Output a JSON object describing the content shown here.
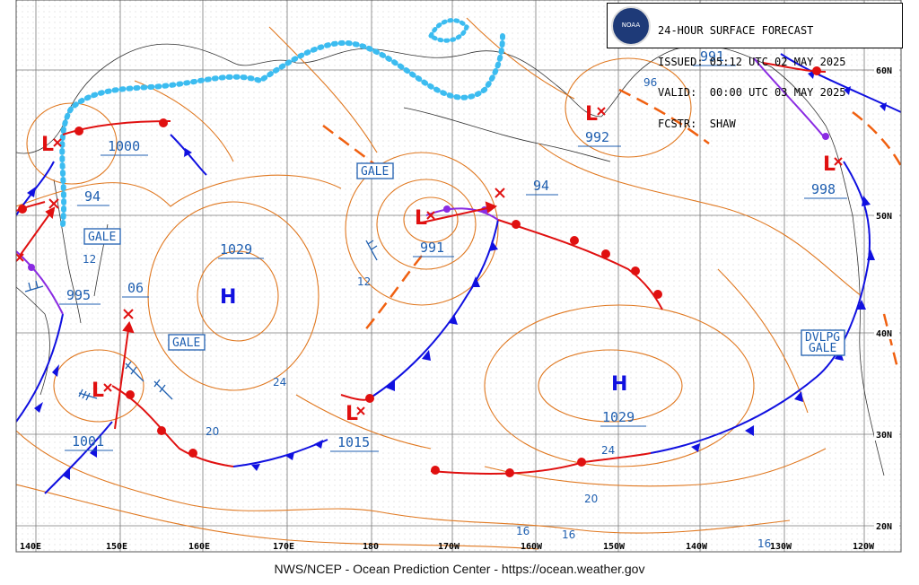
{
  "header": {
    "agency_logo_text": "NOAA",
    "title": "24-HOUR SURFACE FORECAST",
    "issued": "ISSUED: 05:12 UTC 02 MAY 2025",
    "valid": "VALID:  00:00 UTC 03 MAY 2025",
    "forecaster": "FCSTR:  SHAW"
  },
  "footer": "NWS/NCEP - Ocean Prediction Center - https://ocean.weather.gov",
  "latitude_labels": [
    "60N",
    "50N",
    "40N",
    "30N",
    "20N"
  ],
  "longitude_labels": [
    "140E",
    "150E",
    "160E",
    "170E",
    "180",
    "170W",
    "160W",
    "150W",
    "140W",
    "130W",
    "120W"
  ],
  "highs": [
    {
      "symbol": "H",
      "pressure": "1029"
    },
    {
      "symbol": "H",
      "pressure": "1029"
    }
  ],
  "lows": [
    {
      "pressure": "1000"
    },
    {
      "pressure": "94"
    },
    {
      "pressure": "995"
    },
    {
      "pressure": "06"
    },
    {
      "pressure": "1001"
    },
    {
      "pressure": "991"
    },
    {
      "pressure": "94"
    },
    {
      "pressure": "1015"
    },
    {
      "pressure": "992"
    },
    {
      "pressure": "991"
    },
    {
      "pressure": "998"
    }
  ],
  "warnings": [
    "GALE",
    "GALE",
    "GALE",
    "DVLPG",
    "GALE"
  ],
  "isobar_labels": [
    "12",
    "12",
    "24",
    "20",
    "24",
    "20",
    "16",
    "16",
    "16",
    "96"
  ],
  "colors": {
    "isobar": "#e07820",
    "cold_front": "#1010e0",
    "warm_front": "#e01010",
    "occluded_front": "#8a2be2",
    "ice_edge": "#3cbcf0",
    "trough": "#f06010",
    "label": "#1f5fb0",
    "land_outline": "#333333"
  }
}
